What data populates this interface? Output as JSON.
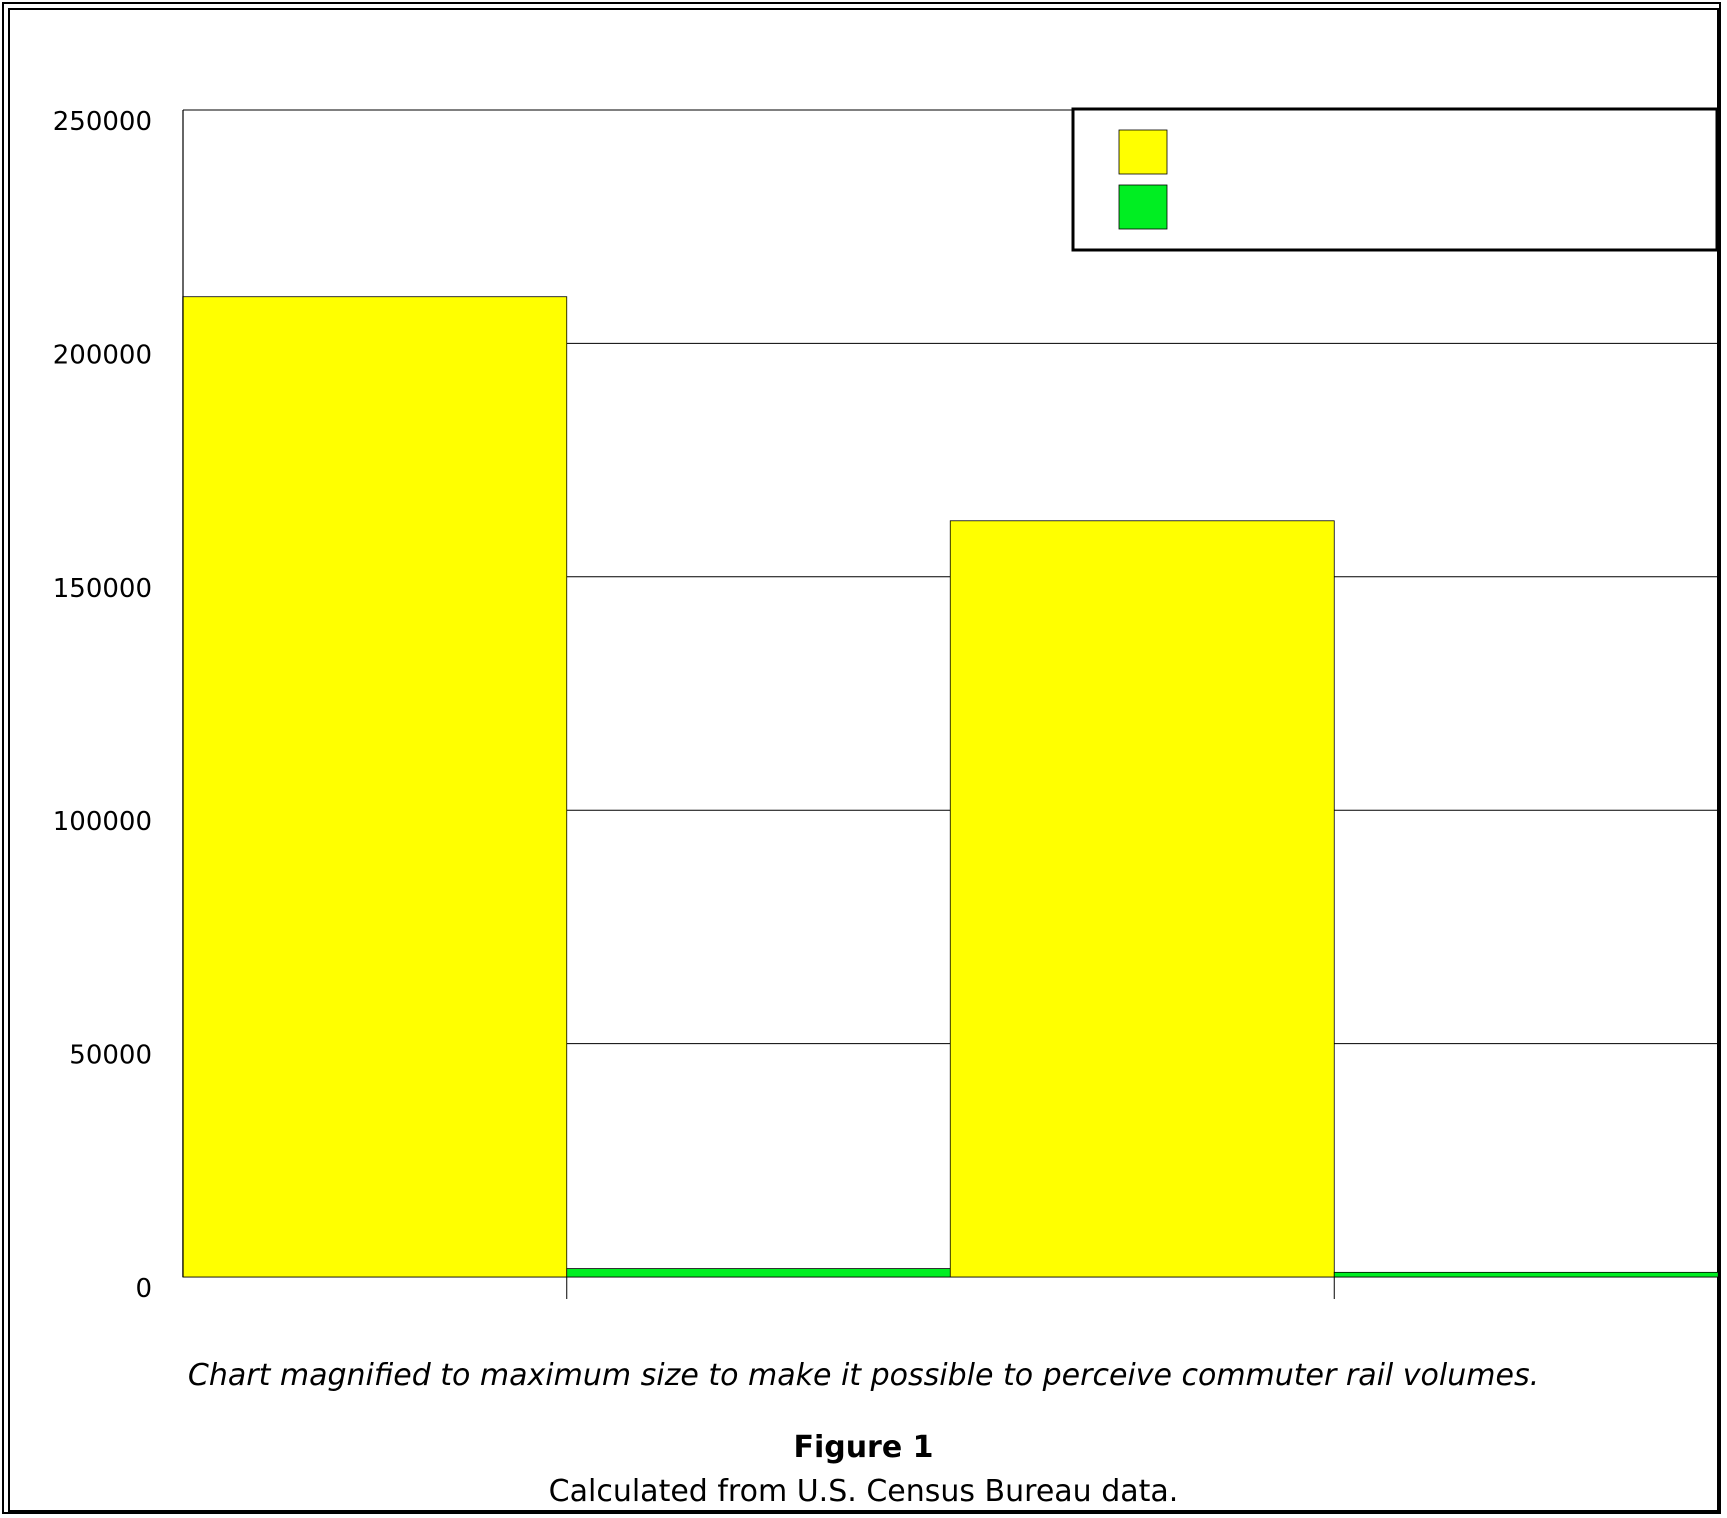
{
  "chart_data": {
    "type": "bar",
    "title": "",
    "xlabel": "",
    "ylabel": "",
    "categories": [
      "",
      ""
    ],
    "series": [
      {
        "name": "",
        "color": "#ffff00",
        "values": [
          210000,
          162000
        ]
      },
      {
        "name": "",
        "color": "#00ee22",
        "values": [
          1800,
          1000
        ]
      }
    ],
    "ylim": [
      0,
      250000
    ],
    "yticks": [
      0,
      50000,
      100000,
      150000,
      200000,
      250000
    ],
    "ytick_labels": [
      "0",
      "50000",
      "100000",
      "150000",
      "200000",
      "250000"
    ],
    "grid": true,
    "legend": "top-right"
  },
  "caption": "Chart magnified to maximum size to make it possible to perceive commuter rail volumes.",
  "figure_label": "Figure 1",
  "source": "Calculated from U.S. Census Bureau data."
}
